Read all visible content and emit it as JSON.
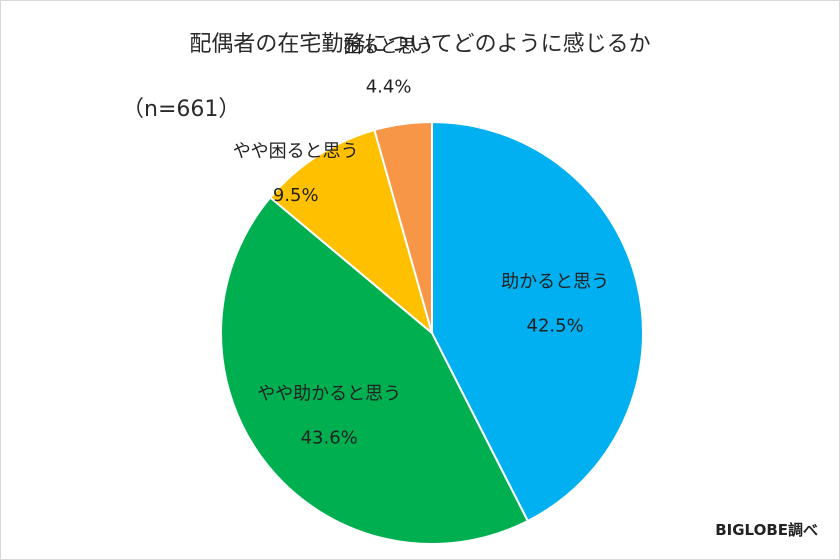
{
  "chart_data": {
    "type": "pie",
    "title": "配偶者の在宅勤務についてどのように感じるか",
    "sample_note": "（n=661）",
    "source": "BIGLOBE調べ",
    "categories": [
      "助かると思う",
      "やや助かると思う",
      "やや困ると思う",
      "困ると思う"
    ],
    "values": [
      42.5,
      43.6,
      9.5,
      4.4
    ],
    "value_labels": [
      "42.5%",
      "43.6%",
      "9.5%",
      "4.4%"
    ],
    "colors": [
      "#00b0f0",
      "#00b050",
      "#ffc000",
      "#f79646"
    ],
    "start": "top",
    "direction": "clockwise",
    "legend": "none"
  }
}
